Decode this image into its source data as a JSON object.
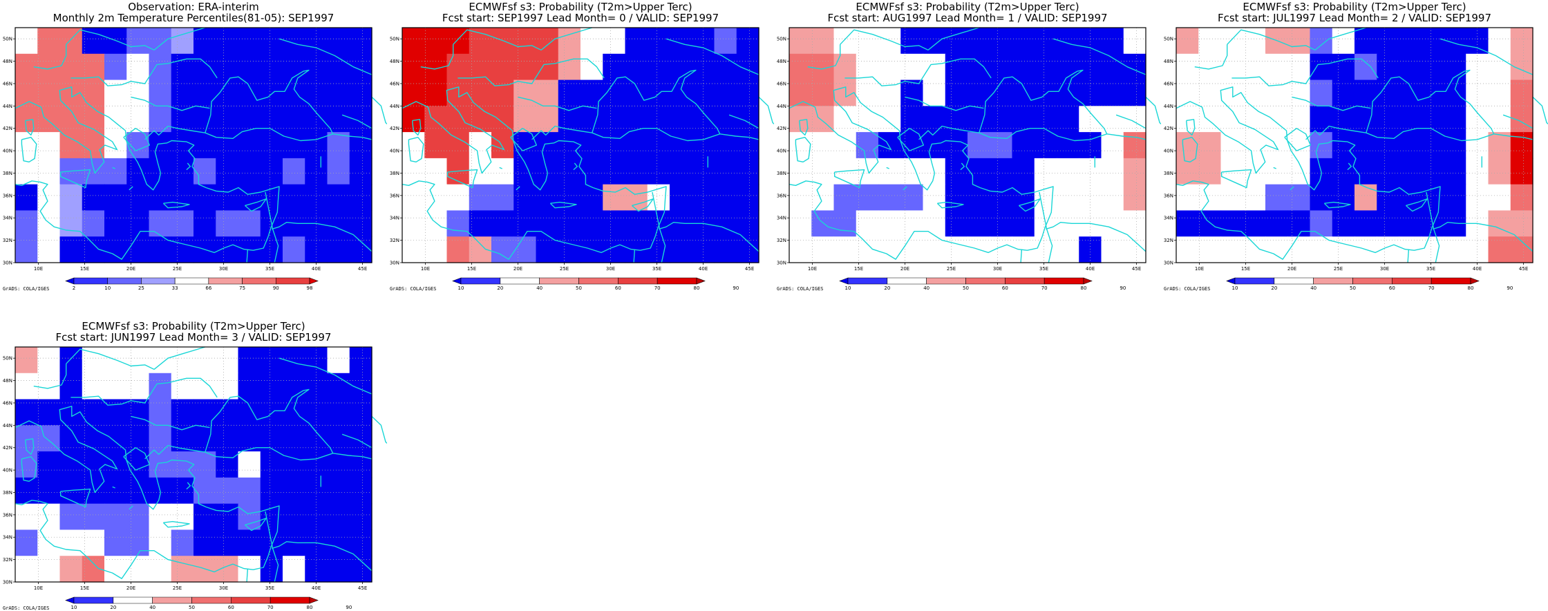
{
  "colors": {
    "blue_dark": "#0000ee",
    "blue_mid": "#3333ff",
    "blue_light": "#6666ff",
    "blue_pale": "#a0a0ff",
    "white": "#ffffff",
    "red_pale": "#f4a0a0",
    "red_light": "#f07070",
    "red_mid": "#e84040",
    "red_strong": "#e00000",
    "red_dark": "#c00000",
    "coast": "#19d6d6"
  },
  "software_credit": "GrADS: COLA/IGES",
  "chart_data": [
    {
      "type": "heatmap",
      "title": "Observation: ERA-interim",
      "subtitle": "Monthly 2m Temperature Percentiles(81-05): SEP1997",
      "lon_range": [
        7.5,
        46.0
      ],
      "lat_range": [
        30.0,
        51.0
      ],
      "x_tick_labels": [
        "10E",
        "15E",
        "20E",
        "25E",
        "30E",
        "35E",
        "40E",
        "45E"
      ],
      "x_tick_values": [
        10,
        15,
        20,
        25,
        30,
        35,
        40,
        45
      ],
      "y_tick_labels": [
        "30N",
        "32N",
        "34N",
        "36N",
        "38N",
        "40N",
        "42N",
        "44N",
        "46N",
        "48N",
        "50N"
      ],
      "y_tick_values": [
        30,
        32,
        34,
        36,
        38,
        40,
        42,
        44,
        46,
        48,
        50
      ],
      "colorbar_labels": [
        "2",
        "10",
        "25",
        "33",
        "66",
        "75",
        "90",
        "98"
      ],
      "colorbar_colors": [
        "#0000ee",
        "#3333ff",
        "#6666ff",
        "#a0a0ff",
        "#ffffff",
        "#f4a0a0",
        "#f07070",
        "#e84040",
        "#e00000"
      ],
      "cell_lon_deg": 2.5,
      "cell_lat_deg": 2.5,
      "grid_rows_north_to_south": [
        "WRRBBLLPBBBBBBBB",
        "RRRRLWLBBBBBBBBB",
        "RRRRWWLBBBBBBBBB",
        "RRRRWWLBBBBBBBBB",
        "WWRRWLBBBBBBBBLB",
        "WWLLLBBBLBBBLBLB",
        "BWPBBBBBBBBBBBBB",
        "LWPLBBLLBLLBBBBB",
        "LWBBBBBBBBBBLBBB"
      ]
    },
    {
      "type": "heatmap",
      "title": "ECMWFsf s3: Probability (T2m>Upper Terc)",
      "subtitle": "Fcst start: SEP1997   Lead Month= 0 / VALID: SEP1997",
      "lon_range": [
        7.5,
        46.0
      ],
      "lat_range": [
        30.0,
        51.0
      ],
      "x_tick_labels": [
        "10E",
        "15E",
        "20E",
        "25E",
        "30E",
        "35E",
        "40E",
        "45E"
      ],
      "x_tick_values": [
        10,
        15,
        20,
        25,
        30,
        35,
        40,
        45
      ],
      "y_tick_labels": [
        "30N",
        "32N",
        "34N",
        "36N",
        "38N",
        "40N",
        "42N",
        "44N",
        "46N",
        "48N",
        "50N"
      ],
      "y_tick_values": [
        30,
        32,
        34,
        36,
        38,
        40,
        42,
        44,
        46,
        48,
        50
      ],
      "colorbar_labels": [
        "10",
        "20",
        "40",
        "50",
        "60",
        "70",
        "80",
        "90"
      ],
      "colorbar_colors": [
        "#0000ee",
        "#3333ff",
        "#ffffff",
        "#f4a0a0",
        "#f07070",
        "#e84040",
        "#e00000",
        "#c00000"
      ],
      "cell_lon_deg": 2.5,
      "cell_lat_deg": 2.5,
      "grid_rows_north_to_south": [
        "SSSXXXXPWWBBBBLB",
        "SSXXXXXPWBBBBBBB",
        "SSXXXPPBBBBBBBBB",
        "SXXXXPPBBBBBBBBB",
        "WXXWXBBBBBBBBBBB",
        "WWXWWBBBBBBBBBBB",
        "WWWLLBBBBPPWBBBB",
        "WWLBBBBBBBBBBBBB",
        "WWRPLLBBBBBBBBBB"
      ]
    },
    {
      "type": "heatmap",
      "title": "ECMWFsf s3: Probability (T2m>Upper Terc)",
      "subtitle": "Fcst start: AUG1997   Lead Month= 1 / VALID: SEP1997",
      "lon_range": [
        7.5,
        46.0
      ],
      "lat_range": [
        30.0,
        51.0
      ],
      "x_tick_labels": [
        "10E",
        "15E",
        "20E",
        "25E",
        "30E",
        "35E",
        "40E",
        "45E"
      ],
      "x_tick_values": [
        10,
        15,
        20,
        25,
        30,
        35,
        40,
        45
      ],
      "y_tick_labels": [
        "30N",
        "32N",
        "34N",
        "36N",
        "38N",
        "40N",
        "42N",
        "44N",
        "46N",
        "48N",
        "50N"
      ],
      "y_tick_values": [
        30,
        32,
        34,
        36,
        38,
        40,
        42,
        44,
        46,
        48,
        50
      ],
      "colorbar_labels": [
        "10",
        "20",
        "40",
        "50",
        "60",
        "70",
        "80",
        "90"
      ],
      "colorbar_colors": [
        "#0000ee",
        "#3333ff",
        "#ffffff",
        "#f4a0a0",
        "#f07070",
        "#e84040",
        "#e00000",
        "#c00000"
      ],
      "cell_lon_deg": 2.5,
      "cell_lat_deg": 2.5,
      "grid_rows_north_to_south": [
        "PPWWWBBBBBBBBBBW",
        "RRPWWWWBBBBBBBBB",
        "RRPWWBWBBBBBBBBB",
        "PPWWWBBBBBBBBWWW",
        "WWWLBBBBLLBBBBWR",
        "WWWWWWWBBBBWWWWP",
        "WWLLLLWBBBBWWWWP",
        "WLLWWWWBBBBWWWWW",
        "WWWWWWWWWWWWWBWW"
      ]
    },
    {
      "type": "heatmap",
      "title": "ECMWFsf s3: Probability (T2m>Upper Terc)",
      "subtitle": "Fcst start: JUL1997   Lead Month= 2 / VALID: SEP1997",
      "lon_range": [
        7.5,
        46.0
      ],
      "lat_range": [
        30.0,
        51.0
      ],
      "x_tick_labels": [
        "10E",
        "15E",
        "20E",
        "25E",
        "30E",
        "35E",
        "40E",
        "45E"
      ],
      "x_tick_values": [
        10,
        15,
        20,
        25,
        30,
        35,
        40,
        45
      ],
      "y_tick_labels": [
        "30N",
        "32N",
        "34N",
        "36N",
        "38N",
        "40N",
        "42N",
        "44N",
        "46N",
        "48N",
        "50N"
      ],
      "y_tick_values": [
        30,
        32,
        34,
        36,
        38,
        40,
        42,
        44,
        46,
        48,
        50
      ],
      "colorbar_labels": [
        "10",
        "20",
        "40",
        "50",
        "60",
        "70",
        "80",
        "90"
      ],
      "colorbar_colors": [
        "#0000ee",
        "#3333ff",
        "#ffffff",
        "#f4a0a0",
        "#f07070",
        "#e84040",
        "#e00000",
        "#c00000"
      ],
      "cell_lon_deg": 2.5,
      "cell_lat_deg": 2.5,
      "grid_rows_north_to_south": [
        "PWWWPPLWBBBBBBWP",
        "WWWWWWBBLBBBBWWP",
        "WWWWWWLBBBBBBWWR",
        "WWWWWWBBBBBBBWWR",
        "PPWWWWLBBBBBBWPS",
        "PPWWWWBBBBBBBWPS",
        "WWWWLLBBPBBBBWWR",
        "BBBBBBLBBBBBBWPP",
        "WWWWWWWWWWWWWWRR"
      ]
    },
    {
      "type": "heatmap",
      "title": "ECMWFsf s3: Probability (T2m>Upper Terc)",
      "subtitle": "Fcst start: JUN1997   Lead Month= 3 / VALID: SEP1997",
      "lon_range": [
        7.5,
        46.0
      ],
      "lat_range": [
        30.0,
        51.0
      ],
      "x_tick_labels": [
        "10E",
        "15E",
        "20E",
        "25E",
        "30E",
        "35E",
        "40E",
        "45E"
      ],
      "x_tick_values": [
        10,
        15,
        20,
        25,
        30,
        35,
        40,
        45
      ],
      "y_tick_labels": [
        "30N",
        "32N",
        "34N",
        "36N",
        "38N",
        "40N",
        "42N",
        "44N",
        "46N",
        "48N",
        "50N"
      ],
      "y_tick_values": [
        30,
        32,
        34,
        36,
        38,
        40,
        42,
        44,
        46,
        48,
        50
      ],
      "colorbar_labels": [
        "10",
        "20",
        "40",
        "50",
        "60",
        "70",
        "80",
        "90"
      ],
      "colorbar_colors": [
        "#0000ee",
        "#3333ff",
        "#ffffff",
        "#f4a0a0",
        "#f07070",
        "#e84040",
        "#e00000",
        "#c00000"
      ],
      "cell_lon_deg": 2.5,
      "cell_lat_deg": 2.5,
      "grid_rows_north_to_south": [
        "PWBWWWWWWWBBBBWB",
        "WWBWWWLWWWBBBBBB",
        "BBBBBBLBBBBBBBBB",
        "LLBBBBLBBBBBBBBB",
        "LBBBBBLLLBWBBBBB",
        "BBBBBBBBLLLBBBBB",
        "WWLLLLWWBBLBBBBB",
        "LWWWLLWLBBBBBBBB",
        "WWPRWWWPPPWBWBBB"
      ]
    }
  ]
}
